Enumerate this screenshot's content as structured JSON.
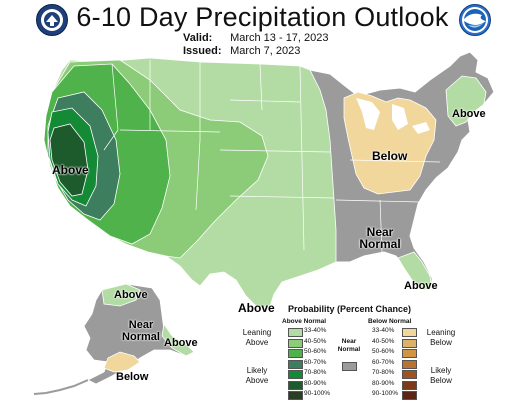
{
  "title": "6-10 Day Precipitation Outlook",
  "valid_label": "Valid:",
  "valid_dates": "March 13 - 17, 2023",
  "issued_label": "Issued:",
  "issued_date": "March 7, 2023",
  "logos": {
    "left": "doc-seal-logo",
    "right": "noaa-logo"
  },
  "colors": {
    "background": "#ffffff",
    "state_lines": "#ffffff",
    "near_normal": "#9b9b9b",
    "above_33_40": "#b3dca4",
    "above_40_50": "#8ccb78",
    "above_50_60": "#4fb24a",
    "above_60_70": "#3c7e5e",
    "above_70_80": "#148a36",
    "above_80_90": "#1d5a2c",
    "above_90_100": "#2a3d25",
    "below_33_40": "#f1d79c",
    "below_40_50": "#dcb26b",
    "below_50_60": "#d09443",
    "below_60_70": "#b87333",
    "below_70_80": "#9c5422",
    "below_80_90": "#7d3a1a",
    "below_90_100": "#5b2615"
  },
  "map_labels": {
    "above_west": "Above",
    "above_northeast": "Above",
    "below_great_lakes": "Below",
    "near_normal_southeast": "Near Normal",
    "above_texas": "Above",
    "above_florida": "Above",
    "alaska_above": "Above",
    "alaska_near_normal": "Near Normal",
    "alaska_above_southeast": "Above",
    "alaska_below": "Below"
  },
  "legend": {
    "title": "Probability (Percent Chance)",
    "above_header": "Above Normal",
    "below_header": "Below Normal",
    "near_normal_label": "Near Normal",
    "leaning_above": "Leaning Above",
    "likely_above": "Likely Above",
    "leaning_below": "Leaning Below",
    "likely_below": "Likely Below",
    "ranges": [
      "33-40%",
      "40-50%",
      "50-60%",
      "60-70%",
      "70-80%",
      "80-90%",
      "90-100%"
    ]
  }
}
